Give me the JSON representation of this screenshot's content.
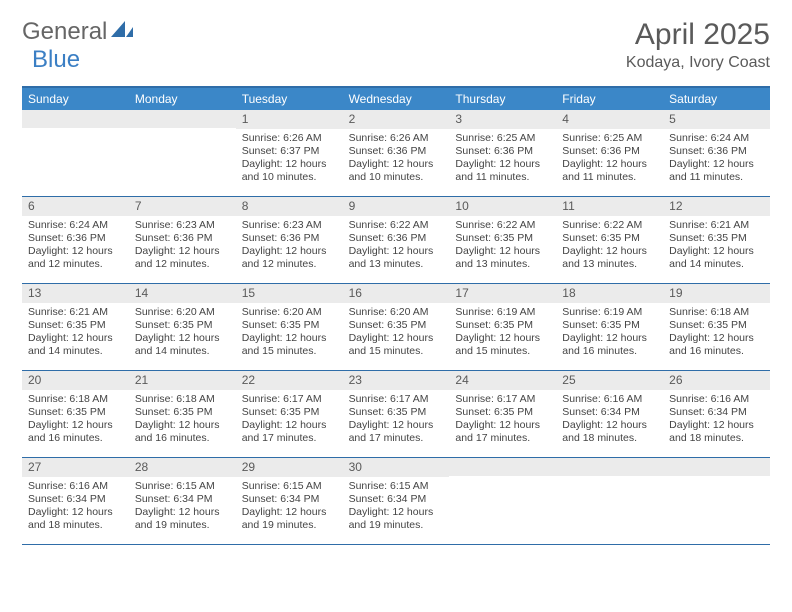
{
  "logo": {
    "text1": "General",
    "text2": "Blue"
  },
  "title": "April 2025",
  "location": "Kodaya, Ivory Coast",
  "colors": {
    "header_bg": "#3b87c8",
    "border": "#2f6da8",
    "daynum_bg": "#ebebeb",
    "text": "#444444",
    "title": "#5a5a5a"
  },
  "day_headers": [
    "Sunday",
    "Monday",
    "Tuesday",
    "Wednesday",
    "Thursday",
    "Friday",
    "Saturday"
  ],
  "weeks": [
    [
      {
        "num": "",
        "sunrise": "",
        "sunset": "",
        "daylight": ""
      },
      {
        "num": "",
        "sunrise": "",
        "sunset": "",
        "daylight": ""
      },
      {
        "num": "1",
        "sunrise": "Sunrise: 6:26 AM",
        "sunset": "Sunset: 6:37 PM",
        "daylight": "Daylight: 12 hours and 10 minutes."
      },
      {
        "num": "2",
        "sunrise": "Sunrise: 6:26 AM",
        "sunset": "Sunset: 6:36 PM",
        "daylight": "Daylight: 12 hours and 10 minutes."
      },
      {
        "num": "3",
        "sunrise": "Sunrise: 6:25 AM",
        "sunset": "Sunset: 6:36 PM",
        "daylight": "Daylight: 12 hours and 11 minutes."
      },
      {
        "num": "4",
        "sunrise": "Sunrise: 6:25 AM",
        "sunset": "Sunset: 6:36 PM",
        "daylight": "Daylight: 12 hours and 11 minutes."
      },
      {
        "num": "5",
        "sunrise": "Sunrise: 6:24 AM",
        "sunset": "Sunset: 6:36 PM",
        "daylight": "Daylight: 12 hours and 11 minutes."
      }
    ],
    [
      {
        "num": "6",
        "sunrise": "Sunrise: 6:24 AM",
        "sunset": "Sunset: 6:36 PM",
        "daylight": "Daylight: 12 hours and 12 minutes."
      },
      {
        "num": "7",
        "sunrise": "Sunrise: 6:23 AM",
        "sunset": "Sunset: 6:36 PM",
        "daylight": "Daylight: 12 hours and 12 minutes."
      },
      {
        "num": "8",
        "sunrise": "Sunrise: 6:23 AM",
        "sunset": "Sunset: 6:36 PM",
        "daylight": "Daylight: 12 hours and 12 minutes."
      },
      {
        "num": "9",
        "sunrise": "Sunrise: 6:22 AM",
        "sunset": "Sunset: 6:36 PM",
        "daylight": "Daylight: 12 hours and 13 minutes."
      },
      {
        "num": "10",
        "sunrise": "Sunrise: 6:22 AM",
        "sunset": "Sunset: 6:35 PM",
        "daylight": "Daylight: 12 hours and 13 minutes."
      },
      {
        "num": "11",
        "sunrise": "Sunrise: 6:22 AM",
        "sunset": "Sunset: 6:35 PM",
        "daylight": "Daylight: 12 hours and 13 minutes."
      },
      {
        "num": "12",
        "sunrise": "Sunrise: 6:21 AM",
        "sunset": "Sunset: 6:35 PM",
        "daylight": "Daylight: 12 hours and 14 minutes."
      }
    ],
    [
      {
        "num": "13",
        "sunrise": "Sunrise: 6:21 AM",
        "sunset": "Sunset: 6:35 PM",
        "daylight": "Daylight: 12 hours and 14 minutes."
      },
      {
        "num": "14",
        "sunrise": "Sunrise: 6:20 AM",
        "sunset": "Sunset: 6:35 PM",
        "daylight": "Daylight: 12 hours and 14 minutes."
      },
      {
        "num": "15",
        "sunrise": "Sunrise: 6:20 AM",
        "sunset": "Sunset: 6:35 PM",
        "daylight": "Daylight: 12 hours and 15 minutes."
      },
      {
        "num": "16",
        "sunrise": "Sunrise: 6:20 AM",
        "sunset": "Sunset: 6:35 PM",
        "daylight": "Daylight: 12 hours and 15 minutes."
      },
      {
        "num": "17",
        "sunrise": "Sunrise: 6:19 AM",
        "sunset": "Sunset: 6:35 PM",
        "daylight": "Daylight: 12 hours and 15 minutes."
      },
      {
        "num": "18",
        "sunrise": "Sunrise: 6:19 AM",
        "sunset": "Sunset: 6:35 PM",
        "daylight": "Daylight: 12 hours and 16 minutes."
      },
      {
        "num": "19",
        "sunrise": "Sunrise: 6:18 AM",
        "sunset": "Sunset: 6:35 PM",
        "daylight": "Daylight: 12 hours and 16 minutes."
      }
    ],
    [
      {
        "num": "20",
        "sunrise": "Sunrise: 6:18 AM",
        "sunset": "Sunset: 6:35 PM",
        "daylight": "Daylight: 12 hours and 16 minutes."
      },
      {
        "num": "21",
        "sunrise": "Sunrise: 6:18 AM",
        "sunset": "Sunset: 6:35 PM",
        "daylight": "Daylight: 12 hours and 16 minutes."
      },
      {
        "num": "22",
        "sunrise": "Sunrise: 6:17 AM",
        "sunset": "Sunset: 6:35 PM",
        "daylight": "Daylight: 12 hours and 17 minutes."
      },
      {
        "num": "23",
        "sunrise": "Sunrise: 6:17 AM",
        "sunset": "Sunset: 6:35 PM",
        "daylight": "Daylight: 12 hours and 17 minutes."
      },
      {
        "num": "24",
        "sunrise": "Sunrise: 6:17 AM",
        "sunset": "Sunset: 6:35 PM",
        "daylight": "Daylight: 12 hours and 17 minutes."
      },
      {
        "num": "25",
        "sunrise": "Sunrise: 6:16 AM",
        "sunset": "Sunset: 6:34 PM",
        "daylight": "Daylight: 12 hours and 18 minutes."
      },
      {
        "num": "26",
        "sunrise": "Sunrise: 6:16 AM",
        "sunset": "Sunset: 6:34 PM",
        "daylight": "Daylight: 12 hours and 18 minutes."
      }
    ],
    [
      {
        "num": "27",
        "sunrise": "Sunrise: 6:16 AM",
        "sunset": "Sunset: 6:34 PM",
        "daylight": "Daylight: 12 hours and 18 minutes."
      },
      {
        "num": "28",
        "sunrise": "Sunrise: 6:15 AM",
        "sunset": "Sunset: 6:34 PM",
        "daylight": "Daylight: 12 hours and 19 minutes."
      },
      {
        "num": "29",
        "sunrise": "Sunrise: 6:15 AM",
        "sunset": "Sunset: 6:34 PM",
        "daylight": "Daylight: 12 hours and 19 minutes."
      },
      {
        "num": "30",
        "sunrise": "Sunrise: 6:15 AM",
        "sunset": "Sunset: 6:34 PM",
        "daylight": "Daylight: 12 hours and 19 minutes."
      },
      {
        "num": "",
        "sunrise": "",
        "sunset": "",
        "daylight": ""
      },
      {
        "num": "",
        "sunrise": "",
        "sunset": "",
        "daylight": ""
      },
      {
        "num": "",
        "sunrise": "",
        "sunset": "",
        "daylight": ""
      }
    ]
  ]
}
